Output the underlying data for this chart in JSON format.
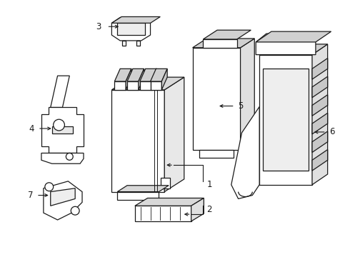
{
  "background_color": "#ffffff",
  "line_color": "#1a1a1a",
  "line_width": 0.9,
  "label_fontsize": 8.5,
  "fig_width": 4.9,
  "fig_height": 3.6,
  "dpi": 100
}
